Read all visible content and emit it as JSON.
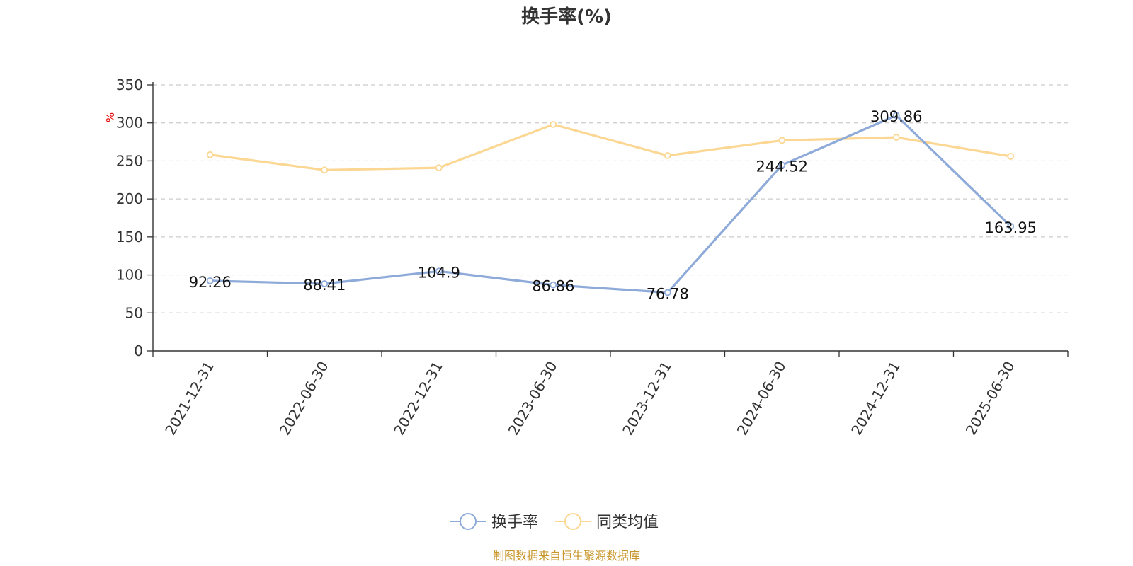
{
  "chart_data": {
    "type": "line",
    "title": "换手率(%)",
    "ylabel": "%",
    "xlabel": "",
    "categories": [
      "2021-12-31",
      "2022-06-30",
      "2022-12-31",
      "2023-06-30",
      "2023-12-31",
      "2024-06-30",
      "2024-12-31",
      "2025-06-30"
    ],
    "ylim": [
      0,
      350
    ],
    "yticks": [
      0,
      50,
      100,
      150,
      200,
      250,
      300,
      350
    ],
    "grid": true,
    "legend_position": "bottom-center",
    "series": [
      {
        "name": "换手率",
        "color": "#8eaad9",
        "values": [
          92.26,
          88.41,
          104.9,
          86.86,
          76.78,
          244.52,
          309.86,
          163.95
        ],
        "labels": [
          "92.26",
          "88.41",
          "104.9",
          "86.86",
          "76.78",
          "244.52",
          "309.86",
          "163.95"
        ],
        "show_labels": true
      },
      {
        "name": "同类均值",
        "color": "#fbd793",
        "values": [
          258,
          238,
          241,
          298,
          257,
          277,
          281,
          256
        ],
        "show_labels": false
      }
    ]
  },
  "source_text": "制图数据来自恒生聚源数据库",
  "source_color": "#c8962a"
}
